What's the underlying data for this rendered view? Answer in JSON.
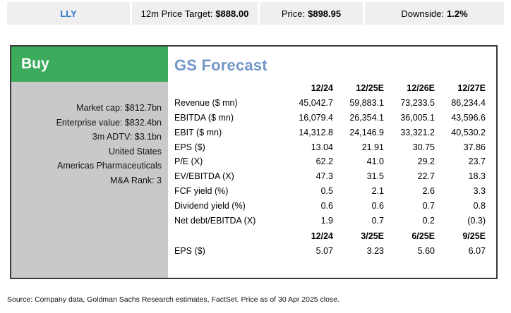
{
  "ticker_bar": {
    "ticker": "LLY",
    "price_target": {
      "label": "12m Price Target:",
      "value": "$888.00"
    },
    "price": {
      "label": "Price:",
      "value": "$898.95"
    },
    "downside": {
      "label": "Downside:",
      "value": "1.2%"
    }
  },
  "rating": {
    "label": "Buy"
  },
  "company_info": {
    "items": [
      "Market cap: $812.7bn",
      "Enterprise value: $832.4bn",
      "3m ADTV: $3.1bn",
      "United States",
      "Americas Pharmaceuticals",
      "M&A Rank: 3"
    ]
  },
  "forecast": {
    "title": "GS Forecast",
    "annual": {
      "columns": [
        "12/24",
        "12/25E",
        "12/26E",
        "12/27E"
      ],
      "rows": [
        {
          "label": "Revenue ($ mn)",
          "values": [
            "45,042.7",
            "59,883.1",
            "73,233.5",
            "86,234.4"
          ]
        },
        {
          "label": "EBITDA ($ mn)",
          "values": [
            "16,079.4",
            "26,354.1",
            "36,005.1",
            "43,596.6"
          ]
        },
        {
          "label": "EBIT ($ mn)",
          "values": [
            "14,312.8",
            "24,146.9",
            "33,321.2",
            "40,530.2"
          ]
        },
        {
          "label": "EPS ($)",
          "values": [
            "13.04",
            "21.91",
            "30.75",
            "37.86"
          ]
        },
        {
          "label": "P/E (X)",
          "values": [
            "62.2",
            "41.0",
            "29.2",
            "23.7"
          ]
        },
        {
          "label": "EV/EBITDA (X)",
          "values": [
            "47.3",
            "31.5",
            "22.7",
            "18.3"
          ]
        },
        {
          "label": "FCF yield (%)",
          "values": [
            "0.5",
            "2.1",
            "2.6",
            "3.3"
          ]
        },
        {
          "label": "Dividend yield (%)",
          "values": [
            "0.6",
            "0.6",
            "0.7",
            "0.8"
          ]
        },
        {
          "label": "Net debt/EBITDA (X)",
          "values": [
            "1.9",
            "0.7",
            "0.2",
            "(0.3)"
          ]
        }
      ]
    },
    "quarterly": {
      "columns": [
        "12/24",
        "3/25E",
        "6/25E",
        "9/25E"
      ],
      "rows": [
        {
          "label": "EPS ($)",
          "values": [
            "5.07",
            "3.23",
            "5.60",
            "6.07"
          ]
        }
      ]
    }
  },
  "footer": {
    "source_note": "Source: Company data, Goldman Sachs Research estimates, FactSet. Price as of 30 Apr 2025 close."
  },
  "colors": {
    "rating_green": "#3cac5c",
    "ticker_blue": "#2878d2",
    "title_blue": "#7396c8",
    "panel_gray": "#c9c9c9",
    "bar_gray": "#efefef",
    "card_border": "#3a3a3a"
  }
}
